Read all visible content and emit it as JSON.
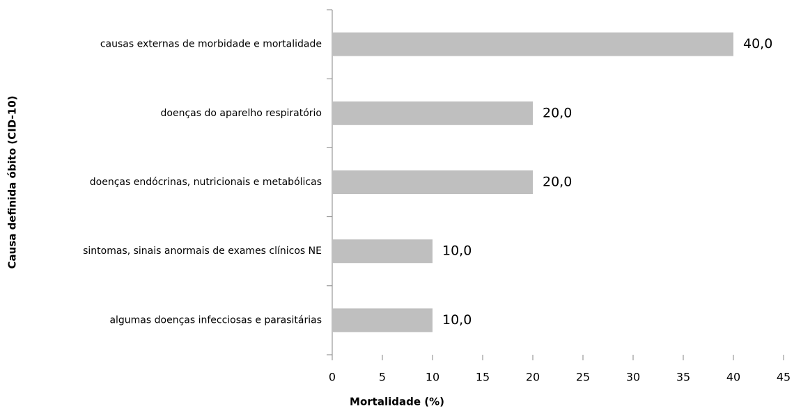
{
  "chart_data": {
    "type": "bar",
    "orientation": "horizontal",
    "x_label": "Mortalidade (%)",
    "y_label": "Causa definida óbito (CID-10)",
    "categories": [
      "causas externas de morbidade e mortalidade",
      "doenças do aparelho respiratório",
      "doenças endócrinas, nutricionais e metabólicas",
      "sintomas, sinais anormais de exames clínicos NE",
      "algumas doenças infecciosas e parasitárias"
    ],
    "values": [
      40,
      20,
      20,
      10,
      10
    ],
    "value_labels": [
      "40,0",
      "20,0",
      "20,0",
      "10,0",
      "10,0"
    ],
    "color": "#bfbfbf",
    "xlim": [
      0,
      45
    ],
    "xticks": [
      0,
      5,
      10,
      15,
      20,
      25,
      30,
      35,
      40,
      45
    ],
    "grid": false
  }
}
